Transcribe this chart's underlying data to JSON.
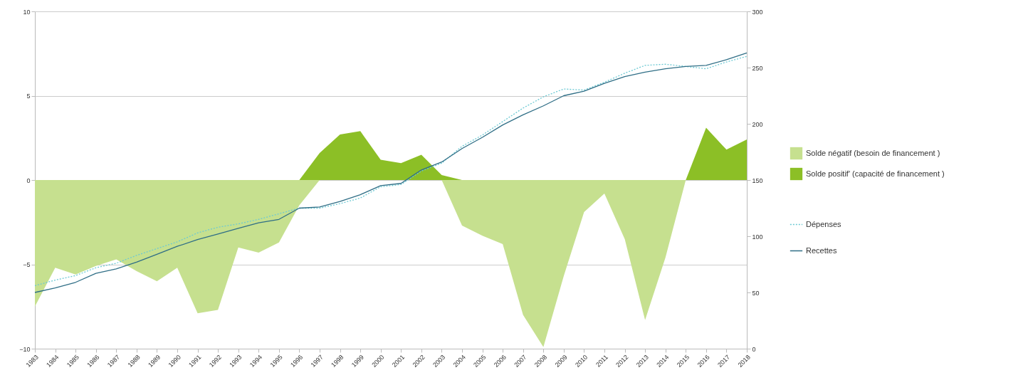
{
  "chart_data": {
    "type": "area",
    "categories": [
      "1983",
      "1984",
      "1985",
      "1986",
      "1987",
      "1988",
      "1989",
      "1990",
      "1991",
      "1992",
      "1993",
      "1994",
      "1995",
      "1996",
      "1997",
      "1998",
      "1999",
      "2000",
      "2001",
      "2002",
      "2003",
      "2004",
      "2005",
      "2006",
      "2007",
      "2008",
      "2009",
      "2010",
      "2011",
      "2012",
      "2013",
      "2014",
      "2015",
      "2016",
      "2017",
      "2018"
    ],
    "series": [
      {
        "name": "Solde négatif (besoin de financement )",
        "color": "#c6e08f",
        "values": [
          -7.5,
          -5.2,
          -5.6,
          -5.1,
          -4.7,
          -5.4,
          -6.0,
          -5.2,
          -7.9,
          -7.7,
          -4.0,
          -4.3,
          -3.7,
          -1.5,
          0,
          0,
          0,
          0,
          0,
          0,
          0,
          -2.7,
          -3.3,
          -3.8,
          -8.0,
          -9.9,
          -5.7,
          -1.9,
          -0.8,
          -3.5,
          -8.3,
          -4.6,
          0,
          0,
          0,
          0
        ]
      },
      {
        "name": "Solde positif' (capacité de financement )",
        "color": "#8cbf26",
        "values": [
          0,
          0,
          0,
          0,
          0,
          0,
          0,
          0,
          0,
          0,
          0,
          0,
          0,
          0,
          1.6,
          2.7,
          2.9,
          1.2,
          1.0,
          1.5,
          0.3,
          0,
          0,
          0,
          0,
          0,
          0,
          0,
          0,
          0,
          0,
          0,
          0,
          3.1,
          1.8,
          2.4
        ]
      },
      {
        "name": "Dépenses",
        "type": "line",
        "axis": "y2",
        "line_style": "dotted",
        "color": "#6cc9d3",
        "values": [
          56,
          61,
          65,
          72,
          76,
          83,
          89,
          95,
          103,
          108,
          111,
          115,
          120,
          125,
          125,
          129,
          134,
          144,
          146,
          158,
          165,
          180,
          190,
          202,
          214,
          224,
          231,
          230,
          237,
          245,
          252,
          253,
          251,
          249,
          255,
          260
        ]
      },
      {
        "name": "Recettes",
        "type": "line",
        "axis": "y2",
        "line_style": "solid",
        "color": "#2f6e86",
        "values": [
          50,
          54,
          59,
          67,
          71,
          77,
          84,
          91,
          97,
          102,
          107,
          112,
          115,
          125,
          126,
          131,
          137,
          145,
          147,
          159,
          166,
          178,
          188,
          199,
          208,
          216,
          225,
          229,
          236,
          242,
          246,
          249,
          251,
          252,
          257,
          263
        ]
      }
    ],
    "ylim": [
      -10,
      10
    ],
    "yticks": [
      -10,
      -5,
      0,
      5,
      10
    ],
    "y2lim": [
      0,
      300
    ],
    "y2ticks": [
      0,
      50,
      100,
      150,
      200,
      250,
      300
    ],
    "grid": "y",
    "legend": "right"
  }
}
